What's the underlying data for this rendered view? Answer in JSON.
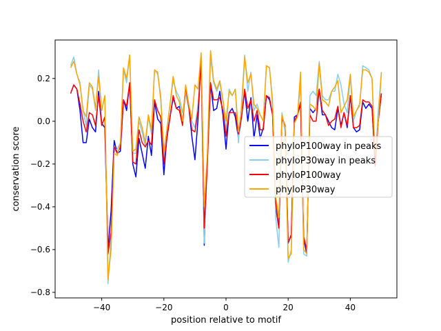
{
  "chart_data": {
    "type": "line",
    "title": "",
    "xlabel": "position relative to motif",
    "ylabel": "conservation score",
    "xlim": [
      -55,
      55
    ],
    "ylim": [
      -0.826,
      0.38
    ],
    "xticks": [
      -40,
      -20,
      0,
      20,
      40
    ],
    "xtick_labels": [
      "−40",
      "−20",
      "0",
      "20",
      "40"
    ],
    "yticks": [
      0.2,
      0.0,
      -0.2,
      -0.4,
      -0.6,
      -0.8
    ],
    "ytick_labels": [
      "0.2",
      "0.0",
      "−0.2",
      "−0.4",
      "−0.6",
      "−0.8"
    ],
    "grid": false,
    "legend_position": "center-right",
    "x_start": -50,
    "series": [
      {
        "name": "phyloP100way in peaks",
        "color": "#0000ff",
        "values": [
          0.13,
          0.17,
          0.15,
          0.05,
          -0.1,
          -0.1,
          0.01,
          -0.03,
          -0.05,
          0.14,
          -0.01,
          -0.03,
          -0.6,
          -0.42,
          -0.09,
          -0.15,
          -0.14,
          0.1,
          0.05,
          0.18,
          -0.2,
          -0.26,
          -0.08,
          -0.15,
          -0.22,
          -0.07,
          -0.16,
          0.09,
          0.01,
          -0.01,
          -0.25,
          -0.07,
          0.02,
          0.11,
          0.06,
          0.07,
          0.0,
          0.16,
          0.07,
          -0.07,
          -0.18,
          0.01,
          0.3,
          -0.58,
          -0.18,
          0.18,
          0.05,
          0.06,
          0.14,
          0.03,
          -0.13,
          0.04,
          0.06,
          0.02,
          -0.08,
          0.02,
          0.14,
          0.0,
          0.11,
          -0.08,
          0.03,
          -0.08,
          -0.03,
          0.12,
          0.1,
          0.03,
          -0.4,
          -0.5,
          0.02,
          -0.03,
          -0.57,
          -0.53,
          0.02,
          0.03,
          0.08,
          -0.55,
          -0.62,
          0.06,
          0.04,
          0.06,
          0.15,
          0.03,
          0.03,
          0.0,
          -0.03,
          -0.04,
          0.06,
          -0.02,
          0.04,
          -0.03,
          0.12,
          -0.03,
          -0.05,
          -0.04,
          0.09,
          0.06,
          0.08,
          0.06,
          -0.18,
          0.0,
          0.13
        ]
      },
      {
        "name": "phyloP30way in peaks",
        "color": "#87ceeb",
        "values": [
          0.26,
          0.3,
          0.22,
          0.18,
          0.05,
          -0.02,
          0.17,
          0.15,
          0.05,
          0.24,
          0.05,
          0.12,
          -0.76,
          -0.55,
          -0.14,
          -0.13,
          -0.1,
          0.24,
          0.18,
          0.31,
          -0.15,
          -0.15,
          0.0,
          -0.05,
          -0.12,
          0.02,
          -0.06,
          0.24,
          0.22,
          0.12,
          -0.17,
          -0.03,
          0.08,
          0.19,
          0.14,
          0.11,
          0.04,
          0.13,
          0.06,
          0.0,
          -0.03,
          0.08,
          0.25,
          -0.57,
          -0.2,
          0.3,
          0.18,
          0.14,
          0.18,
          0.1,
          -0.05,
          0.15,
          0.12,
          0.15,
          -0.1,
          0.08,
          0.31,
          0.14,
          0.23,
          0.05,
          0.08,
          0.03,
          0.0,
          0.26,
          0.25,
          0.1,
          -0.45,
          -0.59,
          0.04,
          -0.05,
          -0.66,
          -0.6,
          0.0,
          0.03,
          0.17,
          -0.62,
          -0.63,
          0.12,
          0.14,
          0.12,
          0.28,
          0.12,
          0.1,
          0.1,
          0.14,
          0.14,
          0.22,
          0.17,
          0.08,
          0.04,
          0.21,
          0.0,
          0.05,
          0.07,
          0.26,
          0.25,
          0.24,
          0.2,
          -0.2,
          0.05,
          0.23
        ]
      },
      {
        "name": "phyloP100way",
        "color": "#ff0000",
        "values": [
          0.13,
          0.17,
          0.15,
          0.08,
          0.0,
          -0.05,
          0.04,
          0.03,
          -0.02,
          0.12,
          -0.02,
          0.02,
          -0.62,
          -0.52,
          -0.12,
          -0.15,
          -0.12,
          0.1,
          0.07,
          0.18,
          -0.19,
          -0.2,
          -0.04,
          -0.1,
          -0.12,
          -0.09,
          -0.11,
          0.1,
          0.05,
          0.02,
          -0.2,
          -0.08,
          0.02,
          0.12,
          0.06,
          0.05,
          -0.02,
          0.16,
          0.07,
          -0.04,
          -0.05,
          0.05,
          0.28,
          -0.5,
          -0.2,
          0.18,
          0.1,
          0.1,
          0.11,
          0.05,
          -0.07,
          0.04,
          0.04,
          0.04,
          -0.06,
          0.02,
          0.15,
          0.06,
          0.1,
          0.0,
          0.05,
          -0.04,
          -0.04,
          0.12,
          0.11,
          0.03,
          -0.38,
          -0.5,
          0.02,
          -0.02,
          -0.56,
          -0.54,
          0.0,
          0.03,
          0.09,
          -0.54,
          -0.6,
          0.03,
          0.0,
          0.0,
          0.15,
          0.05,
          0.03,
          -0.02,
          0.0,
          0.01,
          0.07,
          -0.03,
          0.04,
          -0.02,
          0.12,
          -0.03,
          -0.03,
          -0.02,
          0.1,
          0.09,
          0.09,
          0.07,
          -0.21,
          0.0,
          0.13
        ]
      },
      {
        "name": "phyloP30way",
        "color": "#ffa500",
        "values": [
          0.25,
          0.28,
          0.22,
          0.17,
          0.05,
          0.02,
          0.18,
          0.16,
          0.06,
          0.21,
          0.05,
          0.12,
          -0.74,
          -0.6,
          -0.15,
          -0.16,
          -0.1,
          0.25,
          0.2,
          0.31,
          -0.14,
          -0.13,
          0.02,
          -0.03,
          -0.1,
          0.03,
          -0.04,
          0.24,
          0.23,
          0.1,
          -0.14,
          -0.04,
          0.08,
          0.21,
          0.12,
          0.09,
          0.0,
          0.17,
          0.08,
          0.01,
          0.17,
          0.15,
          0.32,
          -0.4,
          -0.15,
          0.33,
          0.19,
          0.15,
          0.19,
          0.1,
          0.0,
          0.14,
          0.12,
          0.15,
          -0.05,
          0.05,
          0.3,
          0.18,
          0.22,
          0.08,
          0.06,
          0.03,
          0.0,
          0.26,
          0.25,
          0.08,
          -0.35,
          -0.45,
          0.03,
          -0.03,
          -0.64,
          -0.62,
          -0.01,
          0.02,
          0.23,
          -0.6,
          -0.62,
          0.08,
          0.07,
          0.05,
          0.27,
          0.1,
          0.09,
          0.07,
          0.14,
          0.16,
          0.19,
          0.04,
          0.07,
          0.1,
          0.22,
          0.02,
          0.05,
          0.08,
          0.24,
          0.24,
          0.23,
          0.2,
          -0.16,
          0.0,
          0.23
        ]
      }
    ]
  }
}
